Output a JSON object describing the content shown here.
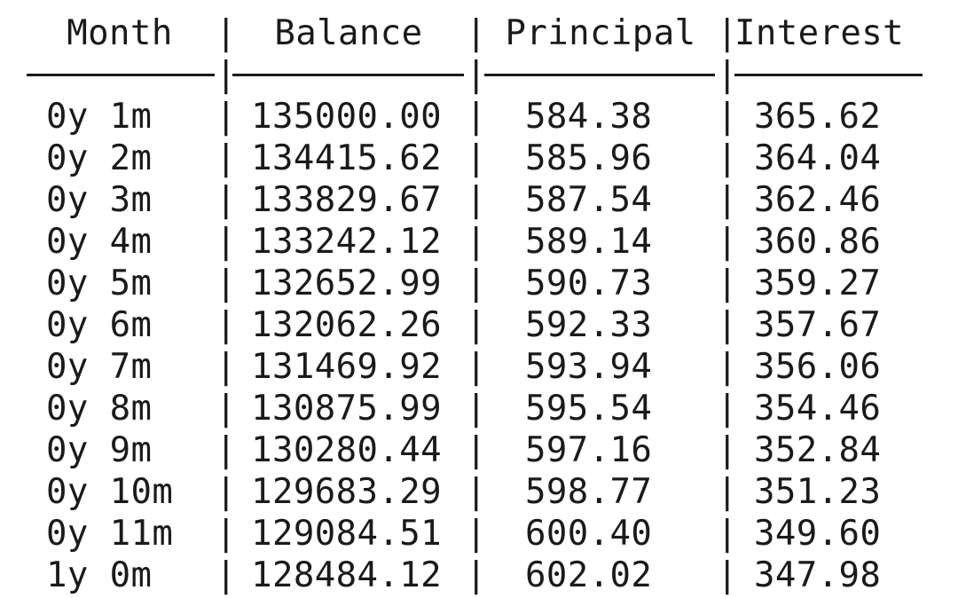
{
  "table": {
    "headers": {
      "month": "Month",
      "balance": "Balance",
      "principal": "Principal",
      "interest": "Interest"
    },
    "separator": "|",
    "rows": [
      {
        "month": "0y 1m",
        "balance": "135000.00",
        "principal": "584.38",
        "interest": "365.62"
      },
      {
        "month": "0y 2m",
        "balance": "134415.62",
        "principal": "585.96",
        "interest": "364.04"
      },
      {
        "month": "0y 3m",
        "balance": "133829.67",
        "principal": "587.54",
        "interest": "362.46"
      },
      {
        "month": "0y 4m",
        "balance": "133242.12",
        "principal": "589.14",
        "interest": "360.86"
      },
      {
        "month": "0y 5m",
        "balance": "132652.99",
        "principal": "590.73",
        "interest": "359.27"
      },
      {
        "month": "0y 6m",
        "balance": "132062.26",
        "principal": "592.33",
        "interest": "357.67"
      },
      {
        "month": "0y 7m",
        "balance": "131469.92",
        "principal": "593.94",
        "interest": "356.06"
      },
      {
        "month": "0y 8m",
        "balance": "130875.99",
        "principal": "595.54",
        "interest": "354.46"
      },
      {
        "month": "0y 9m",
        "balance": "130280.44",
        "principal": "597.16",
        "interest": "352.84"
      },
      {
        "month": "0y 10m",
        "balance": "129683.29",
        "principal": "598.77",
        "interest": "351.23"
      },
      {
        "month": "0y 11m",
        "balance": "129084.51",
        "principal": "600.40",
        "interest": "349.60"
      },
      {
        "month": "1y 0m",
        "balance": "128484.12",
        "principal": "602.02",
        "interest": "347.98"
      }
    ]
  }
}
